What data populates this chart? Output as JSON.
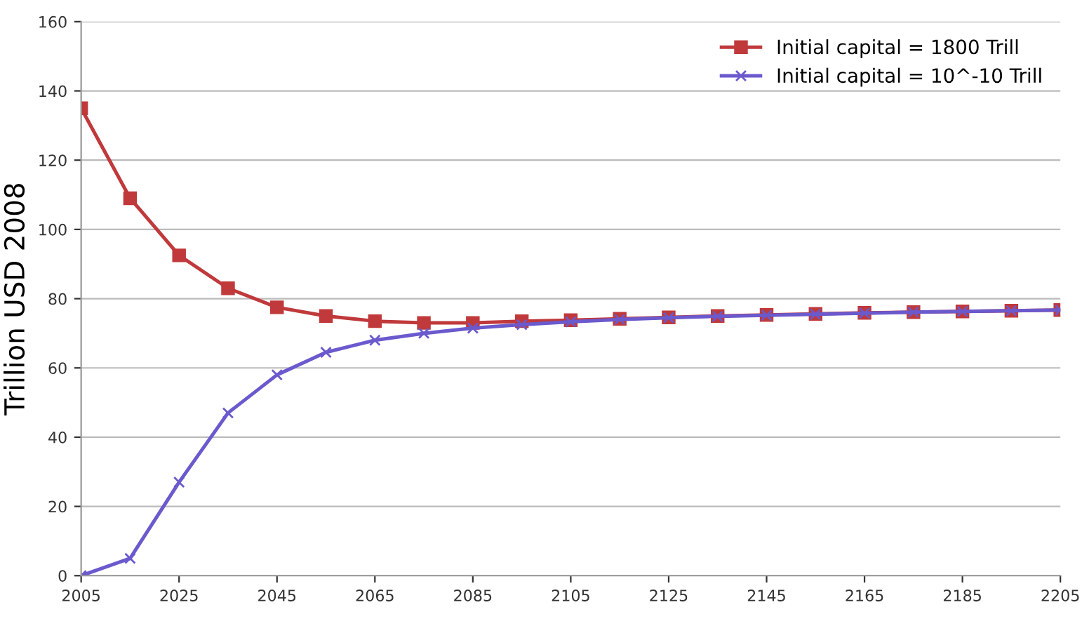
{
  "chart_data": {
    "type": "line",
    "ylabel": "Trillion USD 2008",
    "x": [
      2005,
      2015,
      2025,
      2035,
      2045,
      2055,
      2065,
      2075,
      2085,
      2095,
      2105,
      2115,
      2125,
      2135,
      2145,
      2155,
      2165,
      2175,
      2185,
      2195,
      2205
    ],
    "series": [
      {
        "name": "Initial capital = 1800 Trill",
        "color": "#c0393b",
        "marker": "square",
        "values": [
          135,
          109,
          92.5,
          83,
          77.5,
          75,
          73.5,
          73,
          73,
          73.5,
          73.8,
          74.2,
          74.6,
          75,
          75.3,
          75.6,
          75.9,
          76.1,
          76.3,
          76.5,
          76.7
        ]
      },
      {
        "name": "Initial capital = 10^-10 Trill",
        "color": "#6a5acd",
        "marker": "cross",
        "values": [
          0,
          5,
          27,
          47,
          58,
          64.5,
          68,
          70,
          71.5,
          72.5,
          73.3,
          74,
          74.5,
          74.9,
          75.2,
          75.5,
          75.8,
          76.1,
          76.3,
          76.5,
          76.7
        ]
      }
    ],
    "xlim": [
      2005,
      2205
    ],
    "xticks": [
      2005,
      2025,
      2045,
      2065,
      2085,
      2105,
      2125,
      2145,
      2165,
      2185,
      2205
    ],
    "ylim": [
      0,
      160
    ],
    "yticks": [
      0,
      20,
      40,
      60,
      80,
      100,
      120,
      140,
      160
    ],
    "grid": "y",
    "legend": "top right",
    "line_style": "solid"
  }
}
